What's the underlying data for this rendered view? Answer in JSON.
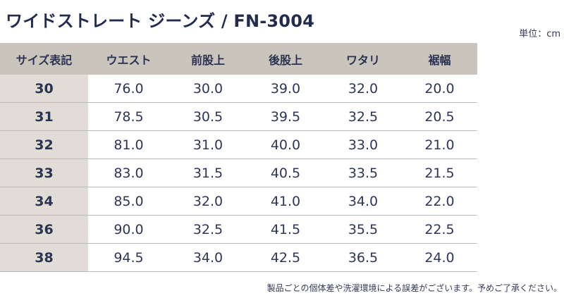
{
  "title": "ワイドストレート ジーンズ / FN-3004",
  "unit_label": "単位：cm",
  "table": {
    "headers": [
      "サイズ表記",
      "ウエスト",
      "前股上",
      "後股上",
      "ワタリ",
      "裾幅"
    ],
    "rows": [
      [
        "30",
        "76.0",
        "30.0",
        "39.0",
        "32.0",
        "20.0"
      ],
      [
        "31",
        "78.5",
        "30.5",
        "39.5",
        "32.5",
        "20.5"
      ],
      [
        "32",
        "81.0",
        "31.0",
        "40.0",
        "33.0",
        "21.0"
      ],
      [
        "33",
        "83.0",
        "31.5",
        "40.5",
        "33.5",
        "21.5"
      ],
      [
        "34",
        "85.0",
        "32.0",
        "41.0",
        "34.0",
        "22.0"
      ],
      [
        "36",
        "90.0",
        "32.5",
        "41.5",
        "35.5",
        "22.5"
      ],
      [
        "38",
        "94.5",
        "34.0",
        "42.5",
        "36.5",
        "24.0"
      ]
    ]
  },
  "footnote": "製品ごとの個体差や洗濯環境による誤差がございます。予めご了承ください。",
  "colors": {
    "header_bg": "#c9c5bd",
    "size_column_bg": "#e1ddd6",
    "text_navy": "#2b3352",
    "row_divider": "#b9b9b9"
  }
}
